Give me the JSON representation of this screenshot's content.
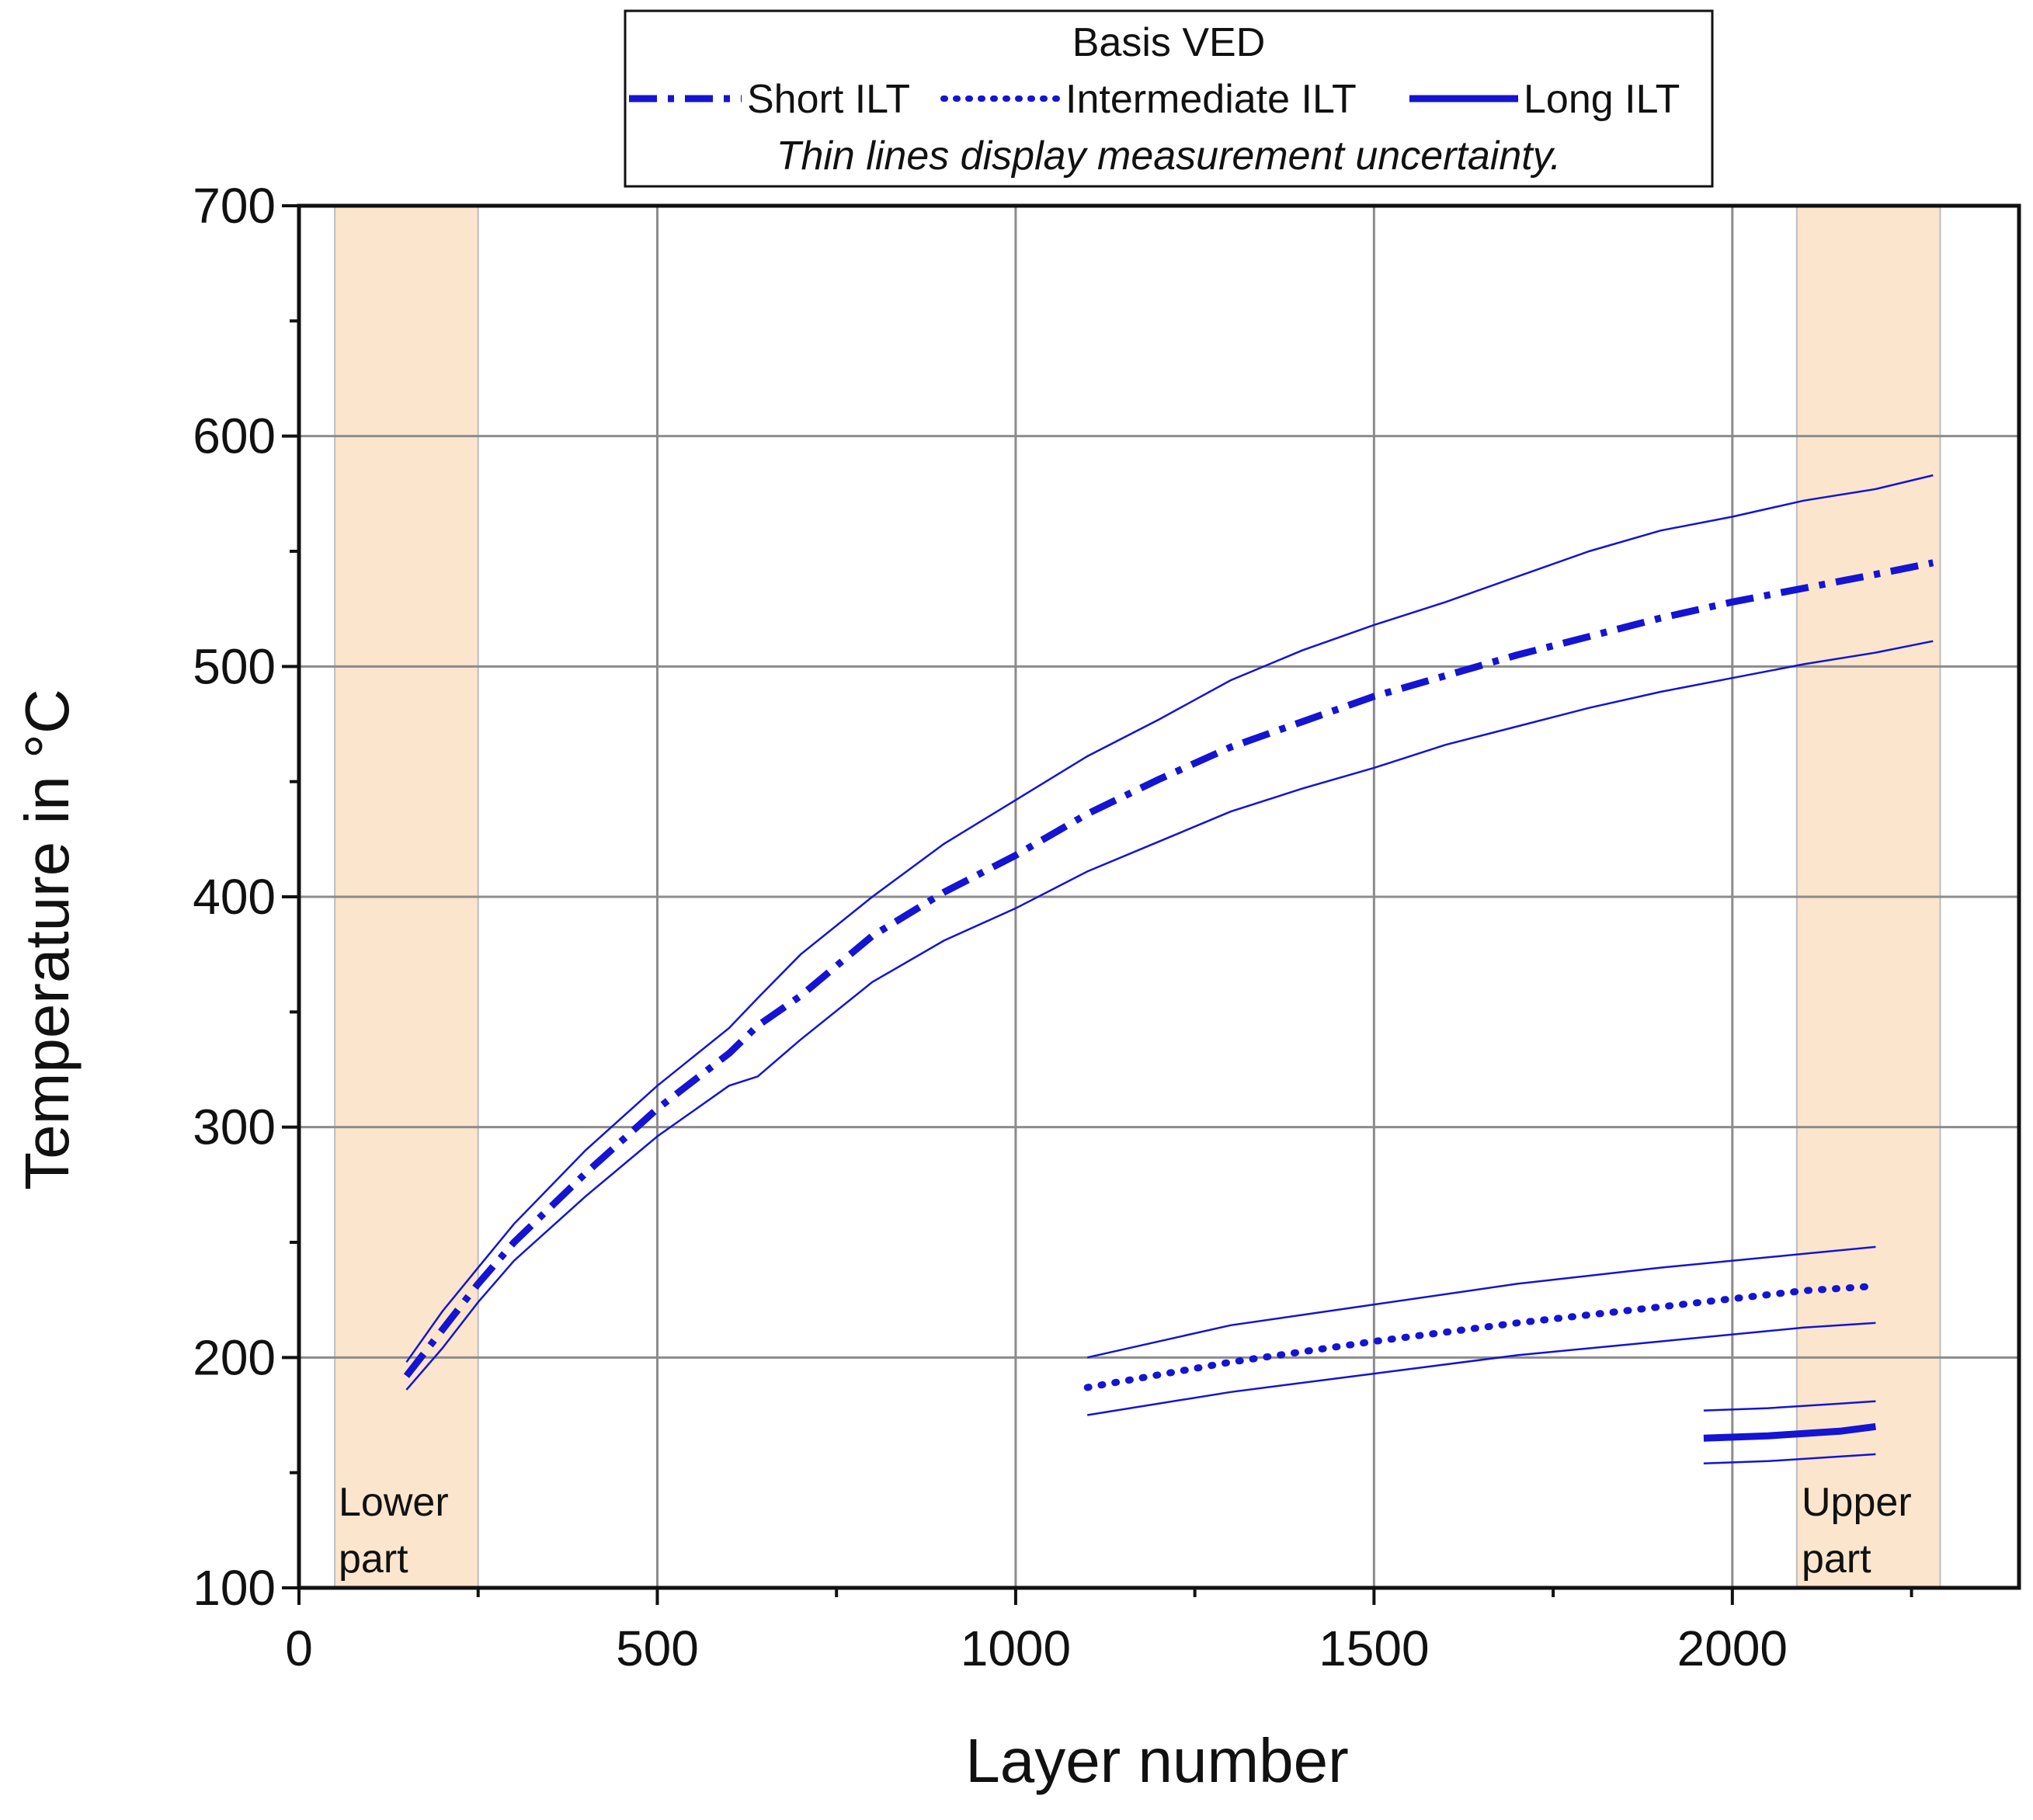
{
  "chart_data": {
    "type": "line",
    "title": "",
    "xlabel": "Layer number",
    "ylabel": "Temperature in °C",
    "xlim": [
      0,
      2400
    ],
    "ylim": [
      100,
      700
    ],
    "xticks": [
      0,
      500,
      1000,
      1500,
      2000
    ],
    "yticks": [
      100,
      200,
      300,
      400,
      500,
      600,
      700
    ],
    "grid": true,
    "legend": {
      "title": "Basis VED",
      "placement": "top-center, above plot",
      "note": "Thin lines display measurement uncertainty.",
      "entries": [
        {
          "label": "Short ILT",
          "style": "dash-dot"
        },
        {
          "label": "Intermediate ILT",
          "style": "dotted"
        },
        {
          "label": "Long ILT",
          "style": "solid"
        }
      ]
    },
    "regions": [
      {
        "label_line1": "Lower",
        "label_line2": "part",
        "x_range": [
          50,
          250
        ],
        "color": "#fbe5cd"
      },
      {
        "label_line1": "Upper",
        "label_line2": "part",
        "x_range": [
          2090,
          2290
        ],
        "color": "#fbe5cd"
      }
    ],
    "series": [
      {
        "name": "Short ILT",
        "style": "dash-dot",
        "color": "#1414d2",
        "x": [
          150,
          200,
          250,
          300,
          400,
          500,
          600,
          640,
          700,
          800,
          900,
          1000,
          1100,
          1200,
          1300,
          1400,
          1500,
          1600,
          1700,
          1800,
          1900,
          2000,
          2100,
          2200,
          2280
        ],
        "y": [
          192,
          212,
          232,
          250,
          280,
          308,
          332,
          344,
          357,
          383,
          402,
          418,
          436,
          451,
          465,
          476,
          487,
          496,
          505,
          513,
          521,
          528,
          534,
          540,
          545
        ],
        "upper": [
          198,
          220,
          239,
          258,
          290,
          318,
          343,
          356,
          375,
          400,
          423,
          442,
          461,
          477,
          494,
          507,
          518,
          528,
          539,
          550,
          559,
          565,
          572,
          577,
          583
        ],
        "lower": [
          186,
          204,
          224,
          242,
          270,
          296,
          318,
          322,
          338,
          363,
          381,
          395,
          411,
          424,
          437,
          447,
          456,
          466,
          474,
          482,
          489,
          495,
          501,
          506,
          511
        ]
      },
      {
        "name": "Intermediate ILT",
        "style": "dotted",
        "color": "#1414d2",
        "x": [
          1100,
          1300,
          1500,
          1700,
          1900,
          2100,
          2200
        ],
        "y": [
          187,
          198,
          207,
          215,
          222,
          229,
          231
        ],
        "upper": [
          200,
          214,
          223,
          232,
          239,
          245,
          248
        ],
        "lower": [
          175,
          185,
          193,
          201,
          207,
          213,
          215
        ]
      },
      {
        "name": "Long ILT",
        "style": "solid",
        "color": "#1414d2",
        "x": [
          1960,
          2050,
          2150,
          2200
        ],
        "y": [
          165,
          166,
          168,
          170
        ],
        "upper": [
          177,
          178,
          180,
          181
        ],
        "lower": [
          154,
          155,
          157,
          158
        ]
      }
    ]
  }
}
